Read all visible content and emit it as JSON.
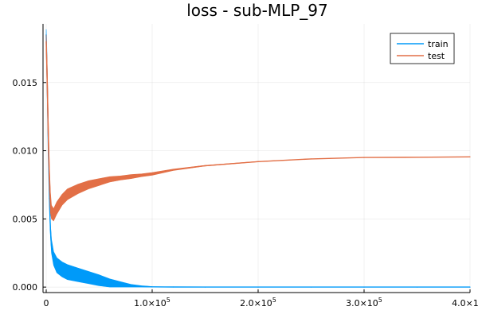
{
  "chart_data": {
    "type": "line",
    "title": "loss - sub-MLP_97",
    "xlabel": "",
    "ylabel": "",
    "xlim": [
      -3000,
      400000
    ],
    "ylim": [
      -0.0004,
      0.0193
    ],
    "grid": true,
    "legend_position": "top-right",
    "x_ticks": [
      {
        "value": 0,
        "label": "0",
        "mantissa": "",
        "exp": ""
      },
      {
        "value": 100000,
        "label": "",
        "mantissa": "1.0×10",
        "exp": "5"
      },
      {
        "value": 200000,
        "label": "",
        "mantissa": "2.0×10",
        "exp": "5"
      },
      {
        "value": 300000,
        "label": "",
        "mantissa": "3.0×10",
        "exp": "5"
      },
      {
        "value": 400000,
        "label": "",
        "mantissa": "4.0×10",
        "exp": "5"
      }
    ],
    "y_ticks": [
      {
        "value": 0.0,
        "label": "0.000"
      },
      {
        "value": 0.005,
        "label": "0.005"
      },
      {
        "value": 0.01,
        "label": "0.010"
      },
      {
        "value": 0.015,
        "label": "0.015"
      }
    ],
    "series": [
      {
        "name": "train",
        "color": "#009af9",
        "x": [
          0,
          1000,
          2000,
          3000,
          4000,
          5000,
          7000,
          10000,
          15000,
          20000,
          30000,
          40000,
          50000,
          60000,
          70000,
          80000,
          90000,
          100000,
          120000,
          150000,
          200000,
          250000,
          300000,
          350000,
          400000
        ],
        "y": [
          0.0185,
          0.015,
          0.01,
          0.0065,
          0.0042,
          0.003,
          0.0021,
          0.0016,
          0.0013,
          0.0011,
          0.0009,
          0.0007,
          0.0005,
          0.0003,
          0.0002,
          0.0001,
          5e-05,
          2e-05,
          1e-05,
          0.0,
          0.0,
          0.0,
          0.0,
          0.0,
          0.0
        ],
        "band": [
          0.0008,
          0.001,
          0.0009,
          0.0008,
          0.0009,
          0.001,
          0.001,
          0.0011,
          0.0011,
          0.0011,
          0.001,
          0.0009,
          0.0008,
          0.0006,
          0.0004,
          0.0002,
          0.0001,
          5e-05,
          0.0,
          0.0,
          0.0,
          0.0,
          0.0,
          0.0,
          0.0
        ]
      },
      {
        "name": "test",
        "color": "#e26f46",
        "x": [
          0,
          1000,
          2000,
          3000,
          4000,
          5000,
          7000,
          10000,
          15000,
          20000,
          30000,
          40000,
          50000,
          60000,
          70000,
          80000,
          90000,
          100000,
          120000,
          150000,
          200000,
          250000,
          300000,
          350000,
          400000
        ],
        "y": [
          0.018,
          0.015,
          0.011,
          0.008,
          0.0062,
          0.0055,
          0.0053,
          0.0058,
          0.0064,
          0.0068,
          0.0072,
          0.0075,
          0.0077,
          0.0079,
          0.008,
          0.0081,
          0.0082,
          0.0083,
          0.0086,
          0.0089,
          0.0092,
          0.0094,
          0.0095,
          0.00952,
          0.00955
        ],
        "band": [
          0.001,
          0.0025,
          0.0025,
          0.002,
          0.0015,
          0.001,
          0.0009,
          0.0009,
          0.0008,
          0.0008,
          0.0007,
          0.0006,
          0.0005,
          0.0004,
          0.0003,
          0.0003,
          0.0002,
          0.0002,
          0.0001,
          5e-05,
          2e-05,
          0.0,
          0.0,
          0.0,
          0.0
        ]
      }
    ]
  }
}
